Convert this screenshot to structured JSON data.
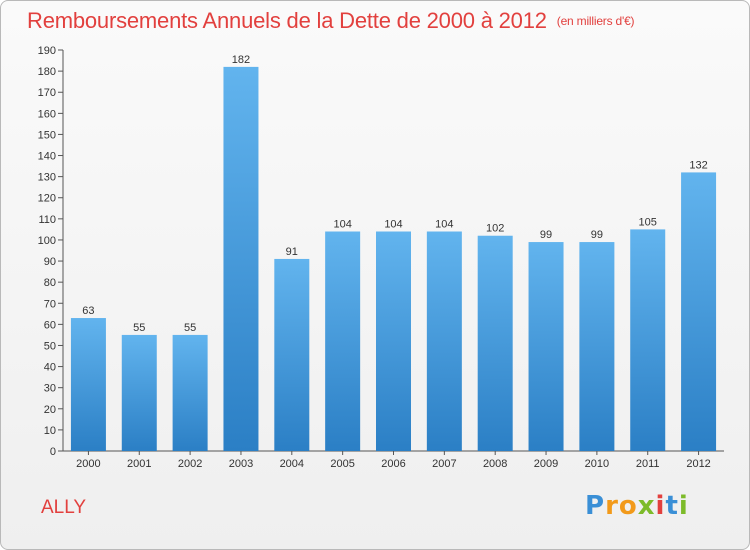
{
  "header": {
    "title": "Remboursements Annuels de la Dette de 2000 à 2012",
    "unit": "(en milliers d'€)"
  },
  "footer": {
    "commune": "ALLY",
    "logo_text": "Proxiti"
  },
  "colors": {
    "title": "#e2403e",
    "bar_top": "#62b4ee",
    "bar_bottom": "#2b7fc5"
  },
  "chart_data": {
    "type": "bar",
    "categories": [
      "2000",
      "2001",
      "2002",
      "2003",
      "2004",
      "2005",
      "2006",
      "2007",
      "2008",
      "2009",
      "2010",
      "2011",
      "2012"
    ],
    "values": [
      63,
      55,
      55,
      182,
      91,
      104,
      104,
      104,
      102,
      99,
      99,
      105,
      132
    ],
    "ylim": [
      0,
      190
    ],
    "yticks": [
      0,
      10,
      20,
      30,
      40,
      50,
      60,
      70,
      80,
      90,
      100,
      110,
      120,
      130,
      140,
      150,
      160,
      170,
      180,
      190
    ],
    "grid": false,
    "legend": "none",
    "data_labels": true
  }
}
